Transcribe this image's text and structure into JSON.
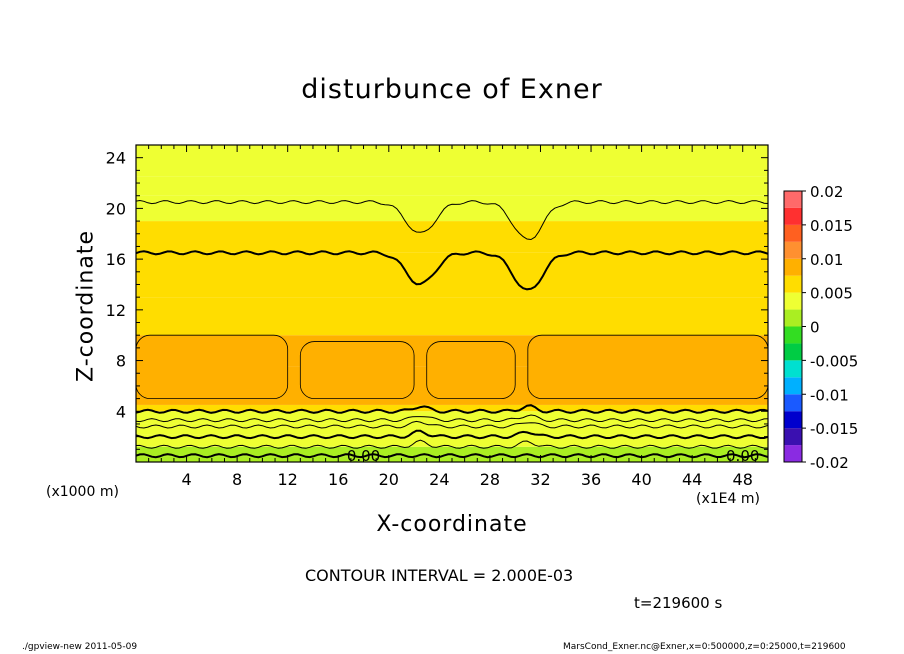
{
  "chart_data": {
    "type": "heatmap",
    "title": "disturbunce of Exner",
    "xlabel": "X-coordinate",
    "ylabel": "Z-coordinate",
    "x_unit_label": "(x1000 m)",
    "x_unit_label_right": "(x1E4 m)",
    "xlim": [
      0,
      50
    ],
    "ylim": [
      0,
      25
    ],
    "x_ticks": [
      "4",
      "8",
      "12",
      "16",
      "20",
      "24",
      "28",
      "32",
      "36",
      "40",
      "44",
      "48"
    ],
    "y_ticks": [
      "4",
      "8",
      "12",
      "16",
      "20",
      "24"
    ],
    "x_tick_values": [
      4,
      8,
      12,
      16,
      20,
      24,
      28,
      32,
      36,
      40,
      44,
      48
    ],
    "y_tick_values": [
      4,
      8,
      12,
      16,
      20,
      24
    ],
    "colorbar": {
      "range": [
        -0.02,
        0.02
      ],
      "step": 0.0025,
      "tick_labels": [
        "0.02",
        "0.015",
        "0.01",
        "0.005",
        "0",
        "-0.005",
        "-0.01",
        "-0.015",
        "-0.02"
      ],
      "tick_values": [
        0.02,
        0.015,
        0.01,
        0.005,
        0,
        -0.005,
        -0.01,
        -0.015,
        -0.02
      ],
      "colors": [
        "#8a2be2",
        "#3a10b0",
        "#0000cd",
        "#1a5aff",
        "#00b0ff",
        "#00e0d0",
        "#00cc44",
        "#33dd22",
        "#aaee22",
        "#eeff33",
        "#ffdd00",
        "#ffb000",
        "#ff9030",
        "#ff6020",
        "#ff3030",
        "#ff6a6a",
        "#ff9aa0"
      ]
    },
    "bands": [
      {
        "z0": 0,
        "z1": 0.4,
        "value": 0.0005
      },
      {
        "z0": 0.4,
        "z1": 1.2,
        "value": 0.0015
      },
      {
        "z0": 1.2,
        "z1": 2.2,
        "value": 0.0025
      },
      {
        "z0": 2.2,
        "z1": 3.0,
        "value": 0.0035
      },
      {
        "z0": 3.0,
        "z1": 4.0,
        "value": 0.0045
      },
      {
        "z0": 4.0,
        "z1": 4.5,
        "value": 0.0055
      },
      {
        "z0": 4.5,
        "z1": 7.5,
        "value": 0.009
      },
      {
        "z0": 7.5,
        "z1": 10.0,
        "value": 0.0078
      },
      {
        "z0": 10.0,
        "z1": 13.0,
        "value": 0.007
      },
      {
        "z0": 13.0,
        "z1": 16.5,
        "value": 0.006
      },
      {
        "z0": 16.5,
        "z1": 19.0,
        "value": 0.0052
      },
      {
        "z0": 19.0,
        "z1": 21.0,
        "value": 0.0045
      },
      {
        "z0": 21.0,
        "z1": 22.5,
        "value": 0.0035
      },
      {
        "z0": 22.5,
        "z1": 25.0,
        "value": 0.003
      }
    ],
    "cells": [
      {
        "x0": 0,
        "x1": 12,
        "z0": 5,
        "z1": 10
      },
      {
        "x0": 13,
        "x1": 22,
        "z0": 5,
        "z1": 9.5
      },
      {
        "x0": 23,
        "x1": 30,
        "z0": 5,
        "z1": 9.5
      },
      {
        "x0": 31,
        "x1": 50,
        "z0": 5,
        "z1": 10
      }
    ],
    "contour_lines": [
      {
        "z": 0.5,
        "bold": true,
        "label": "0.00"
      },
      {
        "z": 1.2,
        "bold": false
      },
      {
        "z": 2.0,
        "bold": true
      },
      {
        "z": 2.8,
        "bold": false
      },
      {
        "z": 3.3,
        "bold": false
      },
      {
        "z": 4.0,
        "bold": true
      },
      {
        "z": 16.5,
        "bold": true
      },
      {
        "z": 20.5,
        "bold": false
      }
    ],
    "dips": [
      {
        "x": 22.5,
        "depth": 2.5
      },
      {
        "x": 31,
        "depth": 3.0
      }
    ],
    "contour_labels": [
      "0.00",
      "0.00"
    ],
    "grid": false,
    "legend": "right"
  },
  "contour_interval": "CONTOUR INTERVAL = 2.000E-03",
  "time": "t=219600 s",
  "footer_left": "./gpview-new   2011-05-09",
  "footer_right": "MarsCond_Exner.nc@Exner,x=0:500000,z=0:25000,t=219600"
}
